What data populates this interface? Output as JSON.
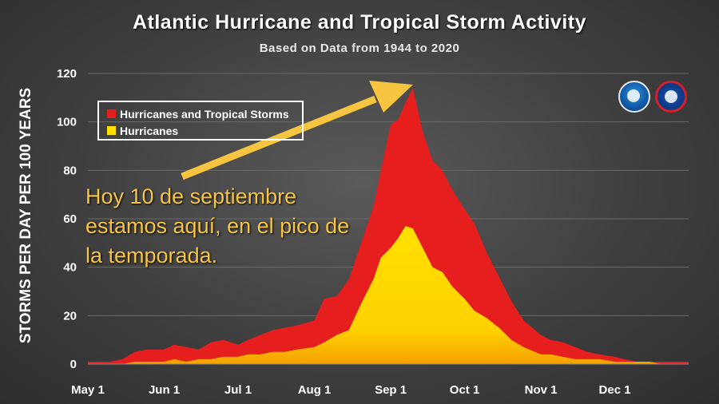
{
  "title": "Atlantic Hurricane and Tropical Storm Activity",
  "subtitle": "Based on Data from 1944 to 2020",
  "annotation": "Hoy 10 de septiembre estamos aquí, en el pico de la temporada.",
  "logos": {
    "noaa": "noaa-logo",
    "nws": "nws-logo"
  },
  "colors": {
    "red": "#e61e1e",
    "yellow": "#ffe000",
    "arrow": "#f8c541"
  },
  "chart_data": {
    "type": "area",
    "title": "Atlantic Hurricane and Tropical Storm Activity",
    "subtitle": "Based on Data from 1944 to 2020",
    "xlabel": "",
    "ylabel": "STORMS PER DAY PER 100 YEARS",
    "ylim": [
      0,
      120
    ],
    "yticks": [
      0,
      20,
      40,
      60,
      80,
      100,
      120
    ],
    "xlim": [
      "May 1",
      "Dec 31"
    ],
    "xticks": [
      "May 1",
      "Jun 1",
      "Jul 1",
      "Aug 1",
      "Sep 1",
      "Oct 1",
      "Nov 1",
      "Dec 1"
    ],
    "grid": "horizontal",
    "legend": "top-left",
    "series": [
      {
        "name": "Hurricanes and Tropical Storms",
        "color": "#e61e1e",
        "x": [
          "May 1",
          "May 10",
          "May 15",
          "May 20",
          "May 25",
          "Jun 1",
          "Jun 5",
          "Jun 10",
          "Jun 15",
          "Jun 20",
          "Jun 25",
          "Jul 1",
          "Jul 5",
          "Jul 10",
          "Jul 15",
          "Jul 20",
          "Jul 25",
          "Aug 1",
          "Aug 5",
          "Aug 10",
          "Aug 15",
          "Aug 20",
          "Aug 25",
          "Aug 28",
          "Sep 1",
          "Sep 4",
          "Sep 7",
          "Sep 10",
          "Sep 14",
          "Sep 18",
          "Sep 22",
          "Sep 26",
          "Oct 1",
          "Oct 5",
          "Oct 10",
          "Oct 15",
          "Oct 20",
          "Oct 25",
          "Nov 1",
          "Nov 5",
          "Nov 10",
          "Nov 15",
          "Nov 20",
          "Nov 25",
          "Dec 1",
          "Dec 5",
          "Dec 10",
          "Dec 15",
          "Dec 20",
          "Dec 25",
          "Dec 31"
        ],
        "values": [
          1,
          1,
          2,
          5,
          6,
          6,
          8,
          7,
          6,
          9,
          10,
          8,
          10,
          12,
          14,
          15,
          16,
          18,
          27,
          28,
          35,
          50,
          65,
          80,
          99,
          101,
          108,
          114,
          96,
          84,
          80,
          72,
          64,
          58,
          46,
          36,
          26,
          18,
          12,
          10,
          9,
          7,
          5,
          4,
          3,
          2,
          1,
          1,
          1,
          1,
          1
        ]
      },
      {
        "name": "Hurricanes",
        "color": "#ffe000",
        "x": [
          "May 1",
          "May 10",
          "May 15",
          "May 20",
          "May 25",
          "Jun 1",
          "Jun 5",
          "Jun 10",
          "Jun 15",
          "Jun 20",
          "Jun 25",
          "Jul 1",
          "Jul 5",
          "Jul 10",
          "Jul 15",
          "Jul 20",
          "Jul 25",
          "Aug 1",
          "Aug 5",
          "Aug 10",
          "Aug 15",
          "Aug 20",
          "Aug 25",
          "Aug 28",
          "Sep 1",
          "Sep 4",
          "Sep 7",
          "Sep 10",
          "Sep 14",
          "Sep 18",
          "Sep 22",
          "Sep 26",
          "Oct 1",
          "Oct 5",
          "Oct 10",
          "Oct 15",
          "Oct 20",
          "Oct 25",
          "Nov 1",
          "Nov 5",
          "Nov 10",
          "Nov 15",
          "Nov 20",
          "Nov 25",
          "Dec 1",
          "Dec 5",
          "Dec 10",
          "Dec 15",
          "Dec 20",
          "Dec 25",
          "Dec 31"
        ],
        "values": [
          0,
          0,
          0,
          1,
          1,
          1,
          2,
          1,
          2,
          2,
          3,
          3,
          4,
          4,
          5,
          5,
          6,
          7,
          9,
          12,
          14,
          25,
          35,
          44,
          48,
          52,
          57,
          56,
          48,
          40,
          38,
          32,
          27,
          22,
          19,
          15,
          10,
          7,
          4,
          4,
          3,
          2,
          2,
          2,
          1,
          1,
          1,
          1,
          0,
          0,
          0
        ]
      }
    ]
  }
}
